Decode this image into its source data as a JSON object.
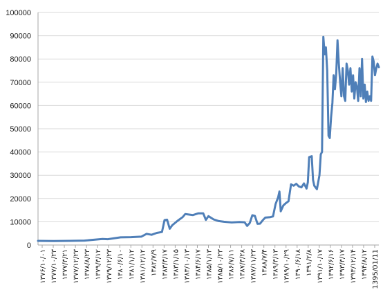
{
  "chart_data": {
    "type": "line",
    "title": "",
    "xlabel": "",
    "ylabel": "",
    "ylim": [
      0,
      100000
    ],
    "y_ticks": [
      "0",
      "10000",
      "20000",
      "30000",
      "40000",
      "50000",
      "60000",
      "70000",
      "80000",
      "90000",
      "100000"
    ],
    "grid": "horizontal",
    "legend": "none",
    "line_color": "#4f7fb8",
    "x_tick_labels": [
      "۱۳۷۶/۱۰/۰۱",
      "۱۳۷۷/۱۰/۲۳",
      "۱۳۷۷/۳/۲۱",
      "۱۳۷۷/۱۲/۲۳",
      "۱۳۷۸/۸/۲۳",
      "۱۳۷۹/۳/۱۲",
      "۱۳۷۹/۱۲/۲۳",
      "۱۳۸۰/۶/۱۰",
      "۱۳۸۱/۱/۱۲",
      "۱۳۸۱/۱۲/۱۲",
      "۱۳۸۲/۷/۹",
      "۱۳۸۳/۳/۱۷",
      "۱۳۸۳/۱/۱۵",
      "۱۳۸۳/۱۰/۱۳",
      "۱۳۸۴/۶/۱۷",
      "۱۳۸۵/۱/۱۳",
      "۱۳۸۵/۱۰/۲۳",
      "۱۳۸۶/۷/۱۱",
      "۱۳۸۷/۳/۲۸",
      "۱۳۸۷/۱۱/۲۳",
      "۱۳۸۸/۷/۴",
      "۱۳۸۹/۳/۱۳",
      "۱۳۸۹/۱۰/۲۹",
      "۱۳۹۰/۶/۱۸",
      "۱۳۹۱/۲/۸",
      "۱۳۹۱/۱۰/۱۷",
      "۱۳۹۲/۶/۱۶",
      "۱۳۹۳/۳/۱۷",
      "۱۳۹۳/۱۲/۱۴",
      "۱۳۹۴/۸/۱۲",
      "1395/01/11"
    ],
    "series": [
      {
        "values": [
          [
            0,
            1800
          ],
          [
            6,
            1700
          ],
          [
            12,
            1800
          ],
          [
            18,
            1900
          ],
          [
            22,
            2300
          ],
          [
            25,
            2600
          ],
          [
            27,
            2500
          ],
          [
            32,
            3300
          ],
          [
            36,
            3400
          ],
          [
            40,
            3600
          ],
          [
            42,
            4800
          ],
          [
            44,
            4400
          ],
          [
            46,
            5200
          ],
          [
            48,
            5600
          ],
          [
            49,
            10700
          ],
          [
            50,
            10900
          ],
          [
            51,
            7000
          ],
          [
            52,
            8500
          ],
          [
            54,
            10400
          ],
          [
            56,
            12000
          ],
          [
            57,
            13300
          ],
          [
            60,
            12900
          ],
          [
            62,
            13600
          ],
          [
            64,
            13600
          ],
          [
            65,
            10800
          ],
          [
            66,
            12400
          ],
          [
            68,
            11000
          ],
          [
            70,
            10300
          ],
          [
            72,
            10000
          ],
          [
            75,
            9700
          ],
          [
            78,
            9900
          ],
          [
            80,
            9800
          ],
          [
            81,
            8200
          ],
          [
            82,
            9500
          ],
          [
            83,
            12800
          ],
          [
            84,
            12500
          ],
          [
            85,
            9100
          ],
          [
            86,
            9200
          ],
          [
            87,
            10600
          ],
          [
            88,
            11800
          ],
          [
            90,
            12000
          ],
          [
            91,
            12300
          ],
          [
            92,
            17600
          ],
          [
            93,
            20500
          ],
          [
            93.5,
            23000
          ],
          [
            94,
            14500
          ],
          [
            95,
            17000
          ],
          [
            96,
            18000
          ],
          [
            97,
            18800
          ],
          [
            98,
            26100
          ],
          [
            99,
            25500
          ],
          [
            100,
            26300
          ],
          [
            101,
            25200
          ],
          [
            102,
            24800
          ],
          [
            103,
            26500
          ],
          [
            104,
            24300
          ],
          [
            104.5,
            27000
          ],
          [
            105,
            37800
          ],
          [
            106,
            38200
          ],
          [
            106.5,
            28000
          ],
          [
            107,
            25500
          ],
          [
            108,
            24000
          ],
          [
            109,
            30000
          ],
          [
            109.5,
            39000
          ],
          [
            110,
            40000
          ],
          [
            110.5,
            89500
          ],
          [
            111,
            82000
          ],
          [
            111.5,
            85000
          ],
          [
            112,
            75000
          ],
          [
            112.5,
            47000
          ],
          [
            113,
            46000
          ],
          [
            113.5,
            55000
          ],
          [
            114,
            61000
          ],
          [
            114.5,
            73000
          ],
          [
            115,
            67000
          ],
          [
            115.5,
            74000
          ],
          [
            116,
            88000
          ],
          [
            116.5,
            78000
          ],
          [
            117,
            70000
          ],
          [
            117.5,
            64000
          ],
          [
            118,
            76000
          ],
          [
            118.5,
            64000
          ],
          [
            119,
            62000
          ],
          [
            119.5,
            78000
          ],
          [
            120,
            75000
          ],
          [
            120.5,
            69000
          ],
          [
            121,
            76000
          ],
          [
            121.5,
            66000
          ],
          [
            122,
            73000
          ],
          [
            122.5,
            63000
          ],
          [
            123,
            70000
          ],
          [
            123.5,
            68000
          ],
          [
            124,
            62000
          ],
          [
            124.5,
            76000
          ],
          [
            125,
            64000
          ],
          [
            125.5,
            80000
          ],
          [
            126,
            63000
          ],
          [
            126.5,
            69000
          ],
          [
            127,
            61500
          ],
          [
            127.5,
            66000
          ],
          [
            128,
            62000
          ],
          [
            128.5,
            64000
          ],
          [
            129,
            62000
          ],
          [
            129.5,
            81000
          ],
          [
            130,
            79000
          ],
          [
            130.5,
            73000
          ],
          [
            131,
            76000
          ],
          [
            131.5,
            78000
          ],
          [
            132,
            76500
          ]
        ]
      }
    ]
  }
}
